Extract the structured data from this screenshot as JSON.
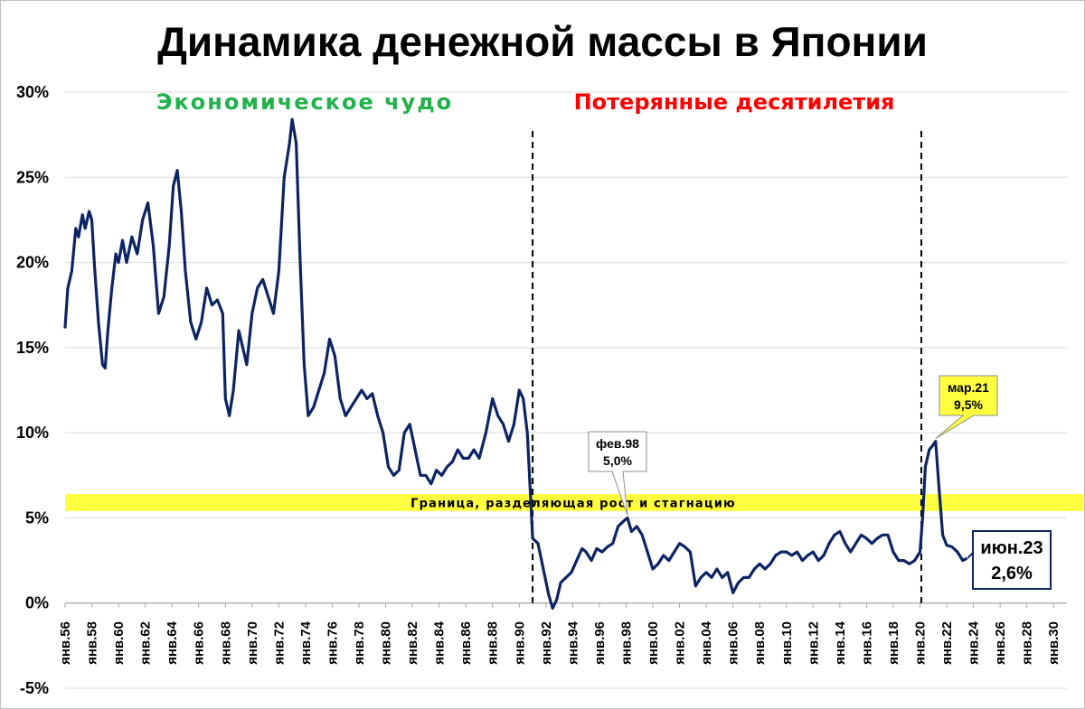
{
  "title": "Динамика денежной массы в Японии",
  "eras": {
    "left_label": "Экономическое чудо",
    "left_color": "#22b14c",
    "right_label": "Потерянные десятилетия",
    "right_color": "#ff0000"
  },
  "chart_data": {
    "type": "line",
    "title": "Динамика денежной массы в Японии",
    "xlabel": "",
    "ylabel": "",
    "ylim": [
      -5,
      30
    ],
    "xlim": [
      "1956-01",
      "2031-01"
    ],
    "y_ticks": [
      "30%",
      "25%",
      "20%",
      "15%",
      "10%",
      "5%",
      "0%",
      "-5%"
    ],
    "x_ticks": [
      "янв.56",
      "янв.58",
      "янв.60",
      "янв.62",
      "янв.64",
      "янв.66",
      "янв.68",
      "янв.70",
      "янв.72",
      "янв.74",
      "янв.76",
      "янв.78",
      "янв.80",
      "янв.82",
      "янв.84",
      "янв.86",
      "янв.88",
      "янв.90",
      "янв.92",
      "янв.94",
      "янв.96",
      "янв.98",
      "янв.00",
      "янв.02",
      "янв.04",
      "янв.06",
      "янв.08",
      "янв.10",
      "янв.12",
      "янв.14",
      "янв.16",
      "янв.18",
      "янв.20",
      "янв.22",
      "янв.24",
      "янв.26",
      "янв.28",
      "янв.30"
    ],
    "grid": true,
    "line_color": "#0d2463",
    "series": [
      {
        "values": [
          [
            1956.0,
            16.2
          ],
          [
            1956.2,
            18.5
          ],
          [
            1956.5,
            19.5
          ],
          [
            1956.8,
            22.0
          ],
          [
            1957.0,
            21.5
          ],
          [
            1957.3,
            22.8
          ],
          [
            1957.5,
            22.0
          ],
          [
            1957.8,
            23.0
          ],
          [
            1958.0,
            22.5
          ],
          [
            1958.2,
            19.8
          ],
          [
            1958.5,
            16.5
          ],
          [
            1958.8,
            14.0
          ],
          [
            1959.0,
            13.8
          ],
          [
            1959.2,
            16.0
          ],
          [
            1959.5,
            18.5
          ],
          [
            1959.8,
            20.5
          ],
          [
            1960.0,
            20.0
          ],
          [
            1960.3,
            21.3
          ],
          [
            1960.6,
            20.0
          ],
          [
            1961.0,
            21.5
          ],
          [
            1961.4,
            20.5
          ],
          [
            1961.8,
            22.5
          ],
          [
            1962.2,
            23.5
          ],
          [
            1962.6,
            21.0
          ],
          [
            1963.0,
            17.0
          ],
          [
            1963.4,
            18.0
          ],
          [
            1963.8,
            21.0
          ],
          [
            1964.1,
            24.5
          ],
          [
            1964.4,
            25.4
          ],
          [
            1964.7,
            23.0
          ],
          [
            1965.0,
            19.5
          ],
          [
            1965.4,
            16.5
          ],
          [
            1965.8,
            15.5
          ],
          [
            1966.2,
            16.5
          ],
          [
            1966.6,
            18.5
          ],
          [
            1967.0,
            17.5
          ],
          [
            1967.4,
            17.8
          ],
          [
            1967.8,
            17.0
          ],
          [
            1968.0,
            12.0
          ],
          [
            1968.3,
            11.0
          ],
          [
            1968.6,
            12.5
          ],
          [
            1969.0,
            16.0
          ],
          [
            1969.3,
            15.0
          ],
          [
            1969.6,
            14.0
          ],
          [
            1970.0,
            17.0
          ],
          [
            1970.4,
            18.5
          ],
          [
            1970.8,
            19.0
          ],
          [
            1971.2,
            18.0
          ],
          [
            1971.6,
            17.0
          ],
          [
            1972.0,
            19.5
          ],
          [
            1972.4,
            25.0
          ],
          [
            1972.8,
            27.0
          ],
          [
            1973.0,
            28.4
          ],
          [
            1973.3,
            27.0
          ],
          [
            1973.6,
            20.0
          ],
          [
            1973.9,
            14.0
          ],
          [
            1974.2,
            11.0
          ],
          [
            1974.6,
            11.5
          ],
          [
            1975.0,
            12.5
          ],
          [
            1975.4,
            13.5
          ],
          [
            1975.8,
            15.5
          ],
          [
            1976.2,
            14.5
          ],
          [
            1976.6,
            12.0
          ],
          [
            1977.0,
            11.0
          ],
          [
            1977.4,
            11.5
          ],
          [
            1977.8,
            12.0
          ],
          [
            1978.2,
            12.5
          ],
          [
            1978.6,
            12.0
          ],
          [
            1979.0,
            12.3
          ],
          [
            1979.4,
            11.0
          ],
          [
            1979.8,
            10.0
          ],
          [
            1980.2,
            8.0
          ],
          [
            1980.6,
            7.5
          ],
          [
            1981.0,
            7.8
          ],
          [
            1981.4,
            10.0
          ],
          [
            1981.8,
            10.5
          ],
          [
            1982.2,
            9.0
          ],
          [
            1982.6,
            7.5
          ],
          [
            1983.0,
            7.5
          ],
          [
            1983.4,
            7.0
          ],
          [
            1983.8,
            7.8
          ],
          [
            1984.2,
            7.5
          ],
          [
            1984.6,
            8.0
          ],
          [
            1985.0,
            8.3
          ],
          [
            1985.4,
            9.0
          ],
          [
            1985.8,
            8.5
          ],
          [
            1986.2,
            8.5
          ],
          [
            1986.6,
            9.0
          ],
          [
            1987.0,
            8.5
          ],
          [
            1987.5,
            10.0
          ],
          [
            1988.0,
            12.0
          ],
          [
            1988.4,
            11.0
          ],
          [
            1988.8,
            10.5
          ],
          [
            1989.2,
            9.5
          ],
          [
            1989.6,
            10.5
          ],
          [
            1990.0,
            12.5
          ],
          [
            1990.3,
            12.0
          ],
          [
            1990.6,
            10.0
          ],
          [
            1991.0,
            3.8
          ],
          [
            1991.4,
            3.5
          ],
          [
            1991.8,
            2.0
          ],
          [
            1992.2,
            0.5
          ],
          [
            1992.5,
            -0.3
          ],
          [
            1992.8,
            0.2
          ],
          [
            1993.1,
            1.2
          ],
          [
            1993.5,
            1.5
          ],
          [
            1993.9,
            1.8
          ],
          [
            1994.3,
            2.5
          ],
          [
            1994.7,
            3.2
          ],
          [
            1995.0,
            3.0
          ],
          [
            1995.4,
            2.5
          ],
          [
            1995.8,
            3.2
          ],
          [
            1996.2,
            3.0
          ],
          [
            1996.6,
            3.3
          ],
          [
            1997.0,
            3.5
          ],
          [
            1997.4,
            4.5
          ],
          [
            1997.8,
            4.8
          ],
          [
            1998.1,
            5.0
          ],
          [
            1998.4,
            4.2
          ],
          [
            1998.8,
            4.5
          ],
          [
            1999.2,
            4.0
          ],
          [
            1999.6,
            3.0
          ],
          [
            2000.0,
            2.0
          ],
          [
            2000.4,
            2.3
          ],
          [
            2000.8,
            2.8
          ],
          [
            2001.2,
            2.5
          ],
          [
            2001.6,
            3.0
          ],
          [
            2002.0,
            3.5
          ],
          [
            2002.4,
            3.3
          ],
          [
            2002.8,
            3.0
          ],
          [
            2003.2,
            1.0
          ],
          [
            2003.6,
            1.5
          ],
          [
            2004.0,
            1.8
          ],
          [
            2004.4,
            1.5
          ],
          [
            2004.8,
            2.0
          ],
          [
            2005.2,
            1.5
          ],
          [
            2005.6,
            1.8
          ],
          [
            2006.0,
            0.6
          ],
          [
            2006.4,
            1.2
          ],
          [
            2006.8,
            1.5
          ],
          [
            2007.2,
            1.5
          ],
          [
            2007.6,
            2.0
          ],
          [
            2008.0,
            2.3
          ],
          [
            2008.4,
            2.0
          ],
          [
            2008.8,
            2.3
          ],
          [
            2009.2,
            2.8
          ],
          [
            2009.6,
            3.0
          ],
          [
            2010.0,
            3.0
          ],
          [
            2010.4,
            2.8
          ],
          [
            2010.8,
            3.0
          ],
          [
            2011.2,
            2.5
          ],
          [
            2011.6,
            2.8
          ],
          [
            2012.0,
            3.0
          ],
          [
            2012.4,
            2.5
          ],
          [
            2012.8,
            2.8
          ],
          [
            2013.2,
            3.5
          ],
          [
            2013.6,
            4.0
          ],
          [
            2014.0,
            4.2
          ],
          [
            2014.4,
            3.5
          ],
          [
            2014.8,
            3.0
          ],
          [
            2015.2,
            3.5
          ],
          [
            2015.6,
            4.0
          ],
          [
            2016.0,
            3.8
          ],
          [
            2016.4,
            3.5
          ],
          [
            2016.8,
            3.8
          ],
          [
            2017.2,
            4.0
          ],
          [
            2017.6,
            4.0
          ],
          [
            2018.0,
            3.0
          ],
          [
            2018.4,
            2.5
          ],
          [
            2018.8,
            2.5
          ],
          [
            2019.2,
            2.3
          ],
          [
            2019.6,
            2.5
          ],
          [
            2020.0,
            3.0
          ],
          [
            2020.2,
            5.0
          ],
          [
            2020.4,
            8.0
          ],
          [
            2020.7,
            9.0
          ],
          [
            2021.0,
            9.3
          ],
          [
            2021.17,
            9.5
          ],
          [
            2021.4,
            7.0
          ],
          [
            2021.7,
            4.0
          ],
          [
            2022.0,
            3.4
          ],
          [
            2022.4,
            3.3
          ],
          [
            2022.8,
            3.0
          ],
          [
            2023.2,
            2.5
          ],
          [
            2023.45,
            2.6
          ]
        ]
      }
    ],
    "vertical_lines": [
      1991.0,
      2020.1
    ],
    "band": {
      "y_from": 5.4,
      "y_to": 6.4,
      "color": "#ffff40",
      "label": "Граница, разделяющая рост и стагнацию"
    },
    "annotations": [
      {
        "id": "feb98",
        "x": 1998.1,
        "y": 5.0,
        "label1": "фев.98",
        "label2": "5,0%",
        "fill": "#ffffff"
      },
      {
        "id": "mar21",
        "x": 2021.17,
        "y": 9.5,
        "label1": "мар.21",
        "label2": "9,5%",
        "fill": "#ffff40"
      },
      {
        "id": "jun23",
        "x": 2023.45,
        "y": 2.6,
        "label1": "июн.23",
        "label2": "2,6%",
        "fill": "#ffffff"
      }
    ]
  }
}
